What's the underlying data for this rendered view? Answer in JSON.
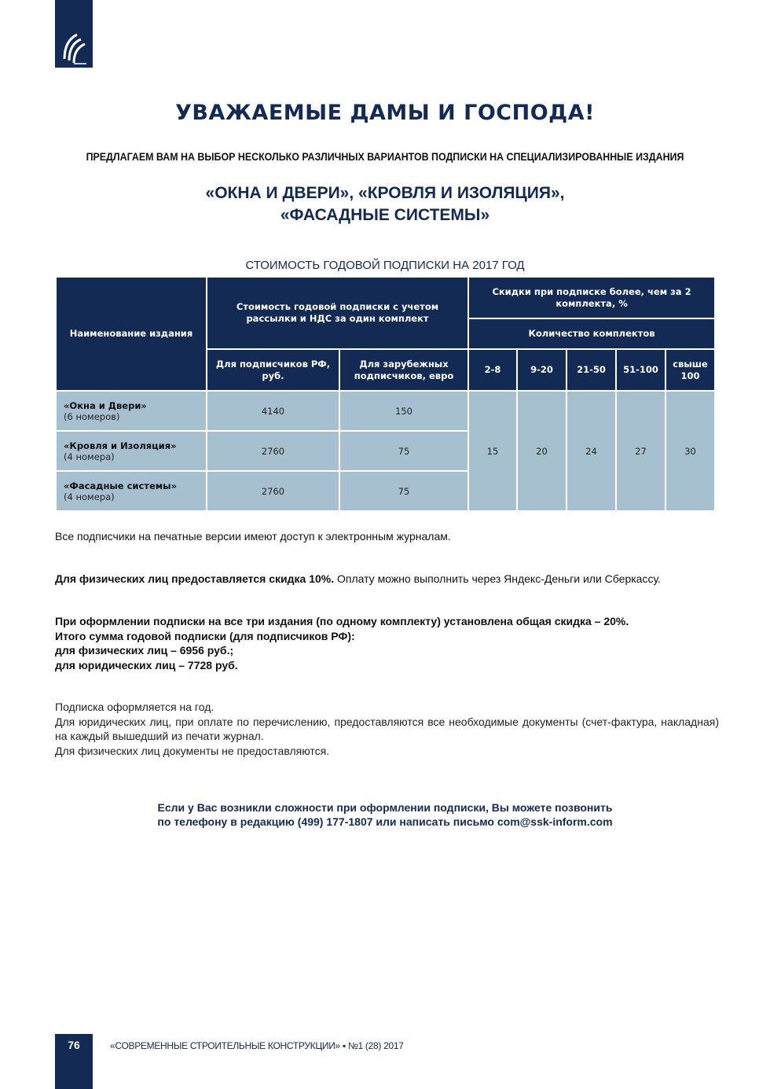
{
  "header": {
    "title": "УВАЖАЕМЫЕ ДАМЫ И ГОСПОДА!",
    "subtitle": "ПРЕДЛАГАЕМ ВАМ НА ВЫБОР НЕСКОЛЬКО РАЗЛИЧНЫХ ВАРИАНТОВ ПОДПИСКИ НА СПЕЦИАЛИЗИРОВАННЫЕ ИЗДАНИЯ",
    "mags_line1": "«ОКНА И ДВЕРИ», «КРОВЛЯ И ИЗОЛЯЦИЯ»,",
    "mags_line2": "«ФАСАДНЫЕ СИСТЕМЫ»"
  },
  "table": {
    "caption": "СТОИМОСТЬ ГОДОВОЙ ПОДПИСКИ НА 2017 ГОД",
    "h_name": "Наименование издания",
    "h_cost": "Стоимость годовой подписки с учетом рассылки и НДС за один комплект",
    "h_disc": "Скидки при подписке более, чем за 2 комплекта, %",
    "h_count": "Количество комплектов",
    "h_rf": "Для подписчиков РФ, руб.",
    "h_foreign": "Для зарубежных подписчиков, евро",
    "ranges": [
      "2-8",
      "9-20",
      "21-50",
      "51-100",
      "свыше 100"
    ],
    "discounts": [
      "15",
      "20",
      "24",
      "27",
      "30"
    ],
    "rows": [
      {
        "name": "«Окна и Двери»",
        "issues": "(6 номеров)",
        "rf": "4140",
        "foreign": "150"
      },
      {
        "name": "«Кровля и Изоляция»",
        "issues": "(4 номера)",
        "rf": "2760",
        "foreign": "75"
      },
      {
        "name": "«Фасадные системы»",
        "issues": "(4 номера)",
        "rf": "2760",
        "foreign": "75"
      }
    ]
  },
  "body": {
    "p1": "Все подписчики на печатные версии имеют доступ к электронным журналам.",
    "p2_bold": "Для физических лиц предоставляется скидка 10%.",
    "p2_rest": " Оплату можно выполнить через Яндекс-Деньги или Сберкассу.",
    "p3": [
      "При оформлении подписки на все три издания (по одному комплекту) установлена общая скидка – 20%.",
      "Итого сумма годовой подписки (для подписчиков РФ):",
      "для физических лиц – 6956 руб.;",
      "для юридических лиц – 7728 руб."
    ],
    "p4": [
      "Подписка оформляется на год.",
      "Для юридических лиц, при оплате по перечислению, предоставляются все необходимые документы (счет-фактура, накладная) на каждый вышедший из печати журнал.",
      "Для физических лиц документы не предоставляются."
    ],
    "contact1": "Если у Вас возникли сложности при оформлении подписки, Вы можете позвонить",
    "contact2": "по телефону в редакцию (499) 177-1807 или написать письмо com@ssk-inform.com"
  },
  "footer": {
    "page_number": "76",
    "journal": "«СОВРЕМЕННЫЕ СТРОИТЕЛЬНЫЕ КОНСТРУКЦИИ» ▪ №1 (28) 2017"
  },
  "colors": {
    "navy": "#132a55",
    "cell": "#a7c0d0"
  }
}
